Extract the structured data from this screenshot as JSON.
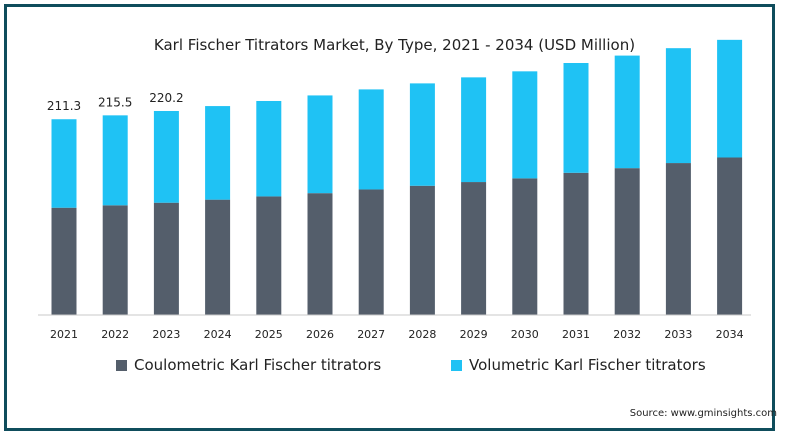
{
  "chart_data": {
    "type": "bar",
    "stacked": true,
    "title": "Karl Fischer Titrators Market, By Type, 2021 - 2034 (USD Million)",
    "categories": [
      "2021",
      "2022",
      "2023",
      "2024",
      "2025",
      "2026",
      "2027",
      "2028",
      "2029",
      "2030",
      "2031",
      "2032",
      "2033",
      "2034"
    ],
    "series": [
      {
        "name": "Coulometric Karl Fischer titrators",
        "color": "#545e6b",
        "values": [
          115.8,
          118.4,
          121.2,
          124.5,
          128.0,
          131.5,
          135.5,
          139.5,
          143.5,
          147.5,
          153.5,
          158.5,
          164.0,
          170.0
        ]
      },
      {
        "name": "Volumetric Karl Fischer titrators",
        "color": "#1fc2f4",
        "values": [
          95.5,
          97.1,
          99.0,
          101.0,
          103.0,
          105.5,
          108.0,
          110.5,
          113.0,
          115.5,
          118.5,
          121.5,
          124.0,
          127.0
        ]
      }
    ],
    "data_labels": [
      {
        "category": "2021",
        "text": "211.3"
      },
      {
        "category": "2022",
        "text": "215.5"
      },
      {
        "category": "2023",
        "text": "220.2"
      }
    ],
    "ylim": [
      0,
      340
    ],
    "grid": false,
    "legend_position": "bottom"
  },
  "source": "Source: www.gminsights.com"
}
